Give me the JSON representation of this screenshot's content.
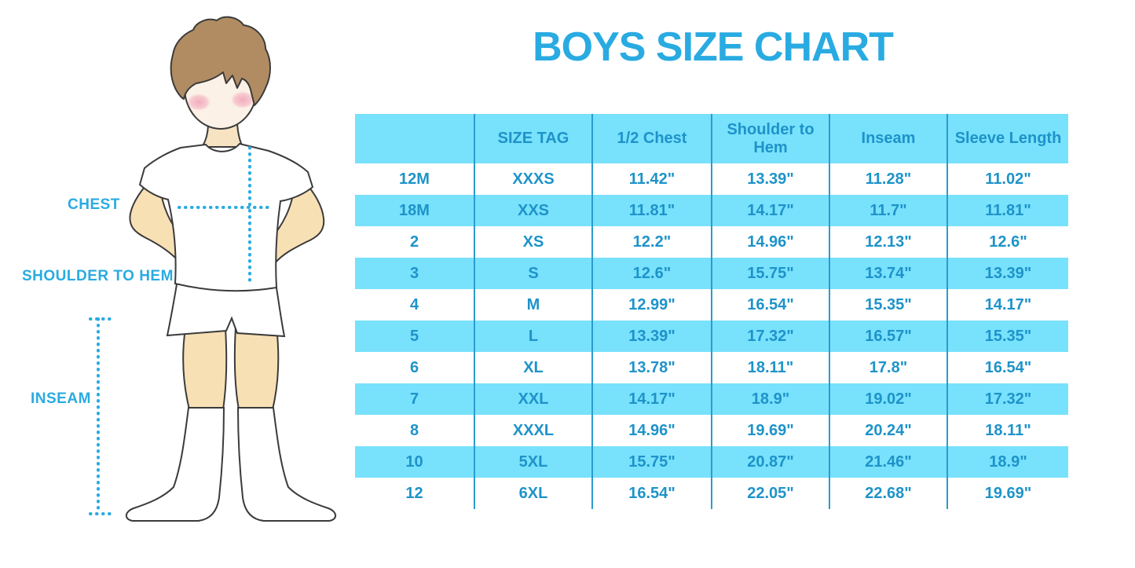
{
  "title": "BOYS SIZE CHART",
  "figure": {
    "description": "outline illustration of a boy in white t-shirt, shorts and knee socks with dotted measurement guides",
    "labels": {
      "chest": "CHEST",
      "shoulder_to_hem": "SHOULDER TO HEM",
      "inseam": "INSEAM"
    }
  },
  "chart_data": {
    "type": "table",
    "title": "BOYS SIZE CHART",
    "columns": [
      "",
      "SIZE TAG",
      "1/2 Chest",
      "Shoulder to Hem",
      "Inseam",
      "Sleeve Length"
    ],
    "rows": [
      [
        "12M",
        "XXXS",
        "11.42\"",
        "13.39\"",
        "11.28\"",
        "11.02\""
      ],
      [
        "18M",
        "XXS",
        "11.81\"",
        "14.17\"",
        "11.7\"",
        "11.81\""
      ],
      [
        "2",
        "XS",
        "12.2\"",
        "14.96\"",
        "12.13\"",
        "12.6\""
      ],
      [
        "3",
        "S",
        "12.6\"",
        "15.75\"",
        "13.74\"",
        "13.39\""
      ],
      [
        "4",
        "M",
        "12.99\"",
        "16.54\"",
        "15.35\"",
        "14.17\""
      ],
      [
        "5",
        "L",
        "13.39\"",
        "17.32\"",
        "16.57\"",
        "15.35\""
      ],
      [
        "6",
        "XL",
        "13.78\"",
        "18.11\"",
        "17.8\"",
        "16.54\""
      ],
      [
        "7",
        "XXL",
        "14.17\"",
        "18.9\"",
        "19.02\"",
        "17.32\""
      ],
      [
        "8",
        "XXXL",
        "14.96\"",
        "19.69\"",
        "20.24\"",
        "18.11\""
      ],
      [
        "10",
        "5XL",
        "15.75\"",
        "20.87\"",
        "21.46\"",
        "18.9\""
      ],
      [
        "12",
        "6XL",
        "16.54\"",
        "22.05\"",
        "22.68\"",
        "19.69\""
      ]
    ],
    "units": "inches",
    "layout": "header row and every second data row filled light blue; blue vertical column dividers"
  },
  "colors": {
    "accent": "#29ABE2",
    "row-blue": "#78E1FC",
    "line-blue": "#2B9CCE",
    "cell-text": "#1E93C9",
    "skin": "#F8E0B5",
    "face": "#FCF1E6",
    "hair": "#B18C62",
    "blush": "#F2A9BD",
    "outline": "#3B3B3B"
  }
}
